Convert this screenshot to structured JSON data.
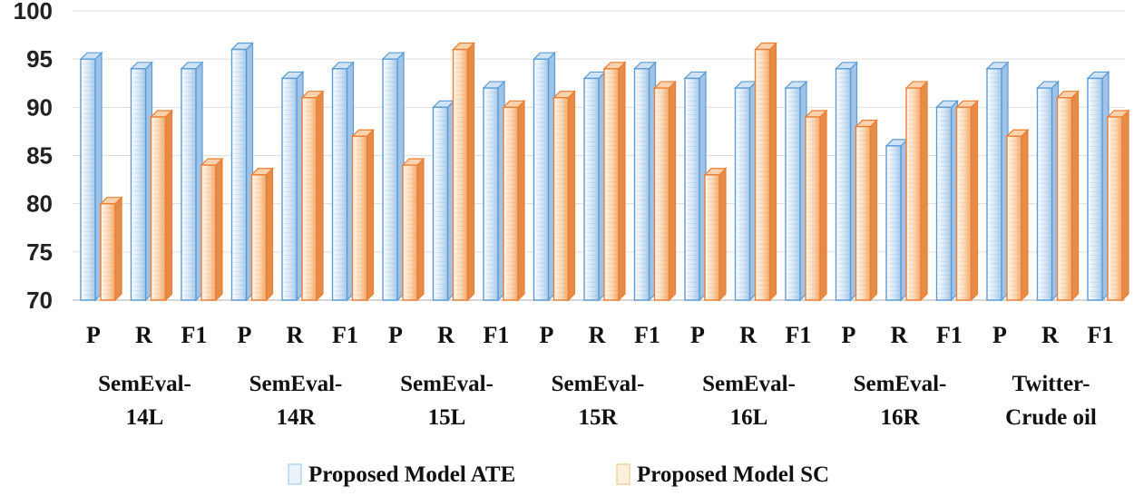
{
  "chart_data": {
    "type": "bar",
    "title": "",
    "xlabel": "",
    "ylabel": "",
    "ylim": [
      70,
      100
    ],
    "yticks": [
      70,
      75,
      80,
      85,
      90,
      95,
      100
    ],
    "grid": true,
    "legend_position": "bottom",
    "groups": [
      {
        "label_lines": [
          "SemEval-",
          "14L"
        ],
        "metrics": [
          "P",
          "R",
          "F1"
        ]
      },
      {
        "label_lines": [
          "SemEval-",
          "14R"
        ],
        "metrics": [
          "P",
          "R",
          "F1"
        ]
      },
      {
        "label_lines": [
          "SemEval-",
          "15L"
        ],
        "metrics": [
          "P",
          "R",
          "F1"
        ]
      },
      {
        "label_lines": [
          "SemEval-",
          "15R"
        ],
        "metrics": [
          "P",
          "R",
          "F1"
        ]
      },
      {
        "label_lines": [
          "SemEval-",
          "16L"
        ],
        "metrics": [
          "P",
          "R",
          "F1"
        ]
      },
      {
        "label_lines": [
          "SemEval-",
          "16R"
        ],
        "metrics": [
          "P",
          "R",
          "F1"
        ]
      },
      {
        "label_lines": [
          "Twitter-",
          "Crude oil"
        ],
        "metrics": [
          "P",
          "R",
          "F1"
        ]
      }
    ],
    "series": [
      {
        "name": "Proposed Model ATE",
        "color": "#5b9bd5",
        "values": [
          95,
          94,
          94,
          96,
          93,
          94,
          95,
          90,
          92,
          95,
          93,
          94,
          93,
          92,
          92,
          94,
          86,
          90,
          94,
          92,
          93
        ]
      },
      {
        "name": "Proposed Model SC",
        "color": "#ed7d31",
        "values": [
          80,
          89,
          84,
          83,
          91,
          87,
          84,
          96,
          90,
          91,
          94,
          92,
          83,
          96,
          89,
          88,
          92,
          90,
          87,
          91,
          89
        ]
      }
    ]
  }
}
